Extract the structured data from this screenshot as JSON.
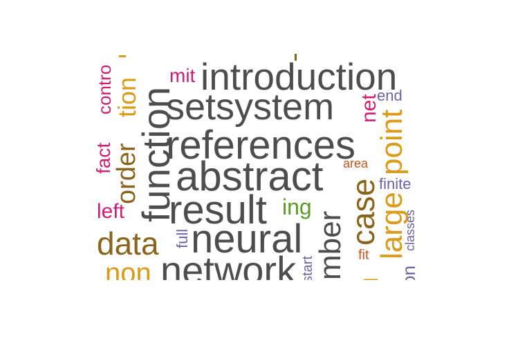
{
  "colors": {
    "gray": "#4d4d4d",
    "brown": "#8b6319",
    "orange": "#dd9a16",
    "magenta": "#d01c73",
    "purple": "#6b63a9",
    "green": "#5c9b24",
    "rust": "#d0521b"
  },
  "words": {
    "introduction": "introduction",
    "setsystem": "setsystem",
    "references": "references",
    "abstract": "abstract",
    "result": "result",
    "neural": "neural",
    "network": "network",
    "function": "function",
    "order": "order",
    "data": "data",
    "non": "non",
    "left": "left",
    "fact": "fact",
    "contr": "contro",
    "mit": "mit",
    "ing": "ing",
    "full": "full",
    "start": "start",
    "mber": "mber",
    "case": "case",
    "large": "large",
    "point": "point",
    "net": "net",
    "end": "end",
    "area": "area",
    "finite": "finite",
    "classes": "classes",
    "fit": "fit",
    "on": "on",
    "n_edge": "n",
    "t_edge": "t",
    "tion": "tion"
  }
}
